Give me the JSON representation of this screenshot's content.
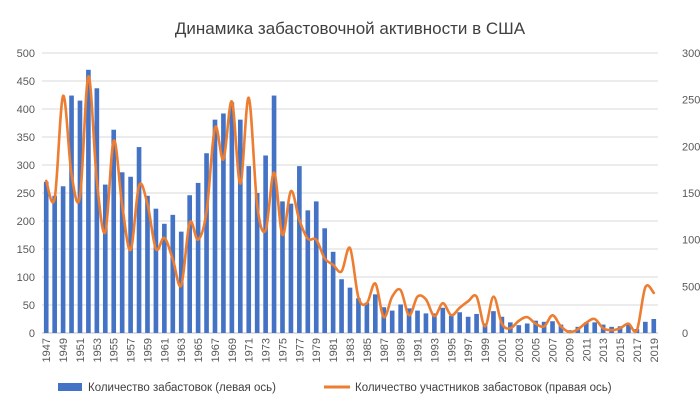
{
  "chart_data": {
    "type": "bar",
    "title": "Динамика забастовочной активности в США",
    "x": [
      1947,
      1948,
      1949,
      1950,
      1951,
      1952,
      1953,
      1954,
      1955,
      1956,
      1957,
      1958,
      1959,
      1960,
      1961,
      1962,
      1963,
      1964,
      1965,
      1966,
      1967,
      1968,
      1969,
      1970,
      1971,
      1972,
      1973,
      1974,
      1975,
      1976,
      1977,
      1978,
      1979,
      1980,
      1981,
      1982,
      1983,
      1984,
      1985,
      1986,
      1987,
      1988,
      1989,
      1990,
      1991,
      1992,
      1993,
      1994,
      1995,
      1996,
      1997,
      1998,
      1999,
      2000,
      2001,
      2002,
      2003,
      2004,
      2005,
      2006,
      2007,
      2008,
      2009,
      2010,
      2011,
      2012,
      2013,
      2014,
      2015,
      2016,
      2017,
      2018,
      2019
    ],
    "x_tick_labels": [
      "1947",
      "1949",
      "1951",
      "1953",
      "1955",
      "1957",
      "1959",
      "1961",
      "1963",
      "1965",
      "1967",
      "1969",
      "1971",
      "1973",
      "1975",
      "1977",
      "1979",
      "1981",
      "1983",
      "1985",
      "1987",
      "1989",
      "1991",
      "1993",
      "1995",
      "1997",
      "1999",
      "2001",
      "2003",
      "2005",
      "2007",
      "2009",
      "2011",
      "2013",
      "2015",
      "2017",
      "2019"
    ],
    "y_left_ticks": [
      "0",
      "50",
      "100",
      "150",
      "200",
      "250",
      "300",
      "350",
      "400",
      "450",
      "500"
    ],
    "y_right_ticks": [
      "0",
      "500",
      "1000",
      "1500",
      "2000",
      "2500",
      "3000"
    ],
    "ylim_left": [
      0,
      500
    ],
    "ylim_right": [
      0,
      3000
    ],
    "series": [
      {
        "name": "Количество забастовок (левая ось)",
        "type": "bar",
        "axis": "left",
        "color": "#4472C4",
        "values": [
          270,
          245,
          262,
          424,
          415,
          470,
          437,
          265,
          363,
          287,
          279,
          332,
          245,
          222,
          195,
          211,
          181,
          246,
          268,
          321,
          381,
          392,
          412,
          381,
          298,
          250,
          317,
          424,
          235,
          231,
          298,
          219,
          235,
          187,
          145,
          96,
          81,
          62,
          54,
          69,
          46,
          40,
          51,
          44,
          40,
          35,
          35,
          45,
          31,
          37,
          29,
          34,
          17,
          39,
          29,
          19,
          14,
          17,
          22,
          20,
          21,
          15,
          5,
          11,
          19,
          19,
          15,
          11,
          12,
          15,
          7,
          20,
          25
        ]
      },
      {
        "name": "Количество участников забастовок (правая ось)",
        "type": "line",
        "axis": "right",
        "color": "#ED7D31",
        "values": [
          1630,
          1440,
          2540,
          1700,
          1460,
          2750,
          1630,
          1080,
          2060,
          1370,
          890,
          1580,
          1380,
          900,
          1020,
          790,
          510,
          1180,
          1000,
          1300,
          2200,
          1860,
          2480,
          1600,
          2520,
          1370,
          1100,
          1720,
          1050,
          1520,
          1210,
          1010,
          1000,
          800,
          730,
          660,
          910,
          380,
          320,
          530,
          170,
          390,
          460,
          190,
          390,
          360,
          180,
          320,
          190,
          270,
          340,
          390,
          70,
          390,
          100,
          50,
          130,
          170,
          100,
          70,
          190,
          70,
          10,
          40,
          110,
          150,
          50,
          30,
          50,
          100,
          30,
          490,
          430
        ]
      }
    ]
  }
}
